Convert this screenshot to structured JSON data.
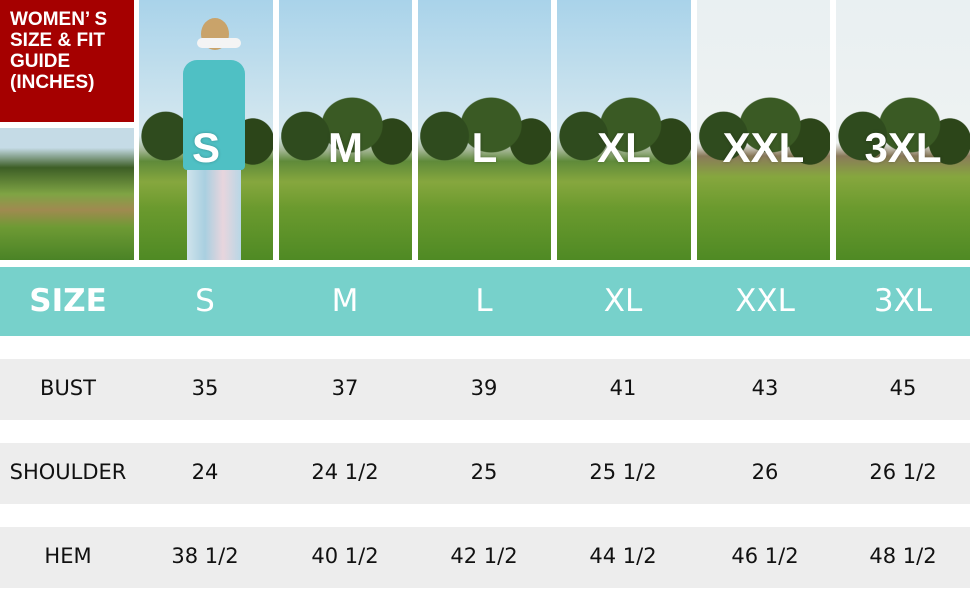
{
  "title": "WOMEN’ S\nSIZE & FIT\nGUIDE\n(INCHES)",
  "colors": {
    "title_bg": "#a50000",
    "header_bg": "#77d1cb",
    "row_bg": "#ededed"
  },
  "photo_labels": [
    "S",
    "M",
    "L",
    "XL",
    "XXL",
    "3XL"
  ],
  "table": {
    "header": [
      "SIZE",
      "S",
      "M",
      "L",
      "XL",
      "XXL",
      "3XL"
    ],
    "rows": [
      [
        "BUST",
        "35",
        "37",
        "39",
        "41",
        "43",
        "45"
      ],
      [
        "SHOULDER",
        "24",
        "24 1/2",
        "25",
        "25 1/2",
        "26",
        "26 1/2"
      ],
      [
        "HEM",
        "38 1/2",
        "40 1/2",
        "42 1/2",
        "44 1/2",
        "46 1/2",
        "48 1/2"
      ]
    ]
  }
}
